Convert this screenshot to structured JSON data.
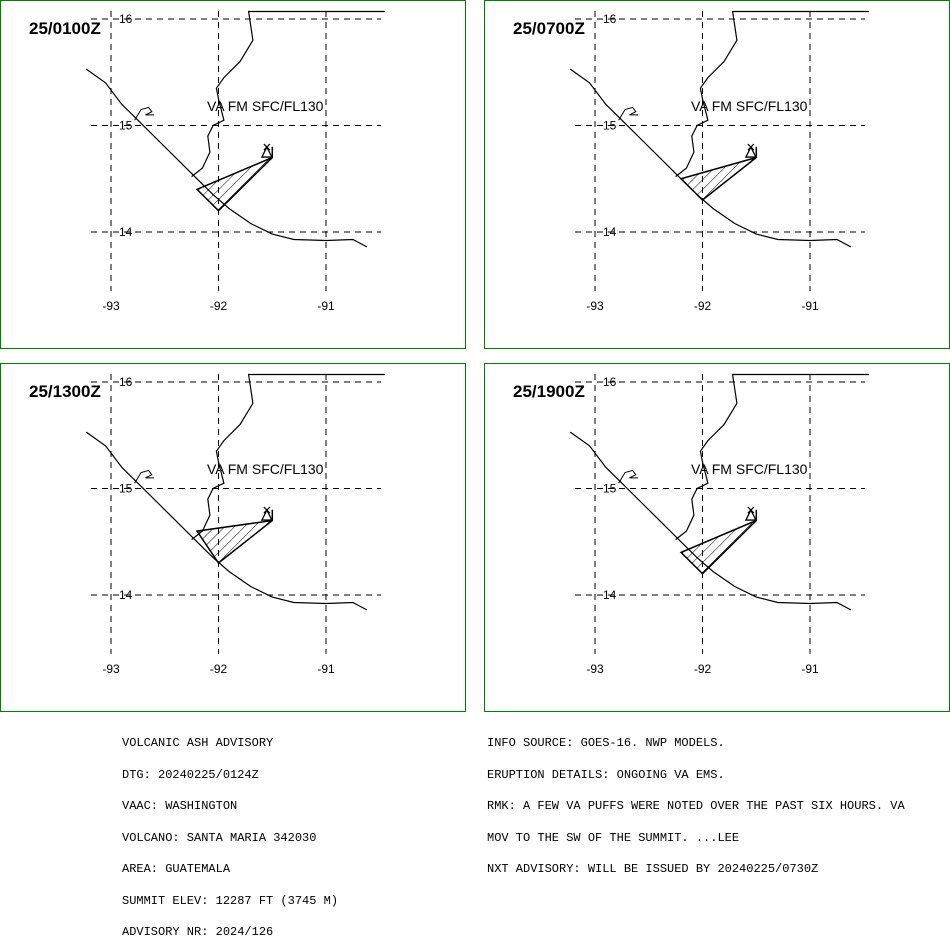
{
  "panels": [
    {
      "time": "25/0100Z",
      "label": "VA FM SFC/FL130",
      "polygon": [
        [
          -91.5,
          14.8
        ],
        [
          -91.5,
          14.7
        ],
        [
          -92.2,
          14.4
        ],
        [
          -92.0,
          14.2
        ],
        [
          -91.5,
          14.7
        ]
      ]
    },
    {
      "time": "25/0700Z",
      "label": "VA FM SFC/FL130",
      "polygon": [
        [
          -91.5,
          14.8
        ],
        [
          -91.5,
          14.7
        ],
        [
          -92.2,
          14.5
        ],
        [
          -92.0,
          14.3
        ],
        [
          -91.5,
          14.7
        ]
      ]
    },
    {
      "time": "25/1300Z",
      "label": "VA FM SFC/FL130",
      "polygon": [
        [
          -91.5,
          14.8
        ],
        [
          -91.5,
          14.7
        ],
        [
          -92.2,
          14.6
        ],
        [
          -92.0,
          14.3
        ],
        [
          -91.5,
          14.7
        ]
      ]
    },
    {
      "time": "25/1900Z",
      "label": "VA FM SFC/FL130",
      "polygon": [
        [
          -91.5,
          14.8
        ],
        [
          -91.5,
          14.7
        ],
        [
          -92.2,
          14.4
        ],
        [
          -92.0,
          14.2
        ],
        [
          -91.5,
          14.7
        ]
      ]
    }
  ],
  "axes": {
    "lon_labels": [
      "-93",
      "-92",
      "-91"
    ],
    "lat_labels": [
      "16",
      "15",
      "14"
    ]
  },
  "advisory_left": [
    "VOLCANIC ASH ADVISORY",
    "DTG: 20240225/0124Z",
    "VAAC: WASHINGTON",
    "VOLCANO: SANTA MARIA 342030",
    "AREA: GUATEMALA",
    "SUMMIT ELEV: 12287 FT (3745 M)",
    "ADVISORY NR: 2024/126"
  ],
  "advisory_right": [
    "INFO SOURCE: GOES-16. NWP MODELS.",
    "ERUPTION DETAILS: ONGOING VA EMS.",
    "RMK: A FEW VA PUFFS WERE NOTED OVER THE PAST SIX HOURS. VA",
    "MOV TO THE SW OF THE SUMMIT. ...LEE",
    "NXT ADVISORY: WILL BE ISSUED BY 20240225/0730Z"
  ],
  "colors": {
    "frame": "#008000"
  }
}
